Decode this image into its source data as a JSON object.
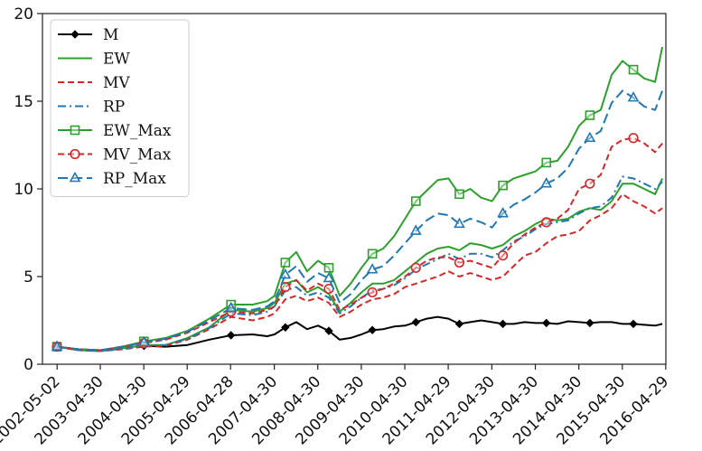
{
  "chart_data": {
    "type": "line",
    "title": "",
    "xlabel": "",
    "ylabel": "",
    "ylim": [
      0,
      20
    ],
    "yticks": [
      0,
      5,
      10,
      15,
      20
    ],
    "xticks": [
      "2002-05-02",
      "2003-04-30",
      "2004-04-30",
      "2005-04-29",
      "2006-04-28",
      "2007-04-30",
      "2008-04-30",
      "2009-04-30",
      "2010-04-30",
      "2011-04-29",
      "2012-04-30",
      "2013-04-30",
      "2014-04-30",
      "2015-04-30",
      "2016-04-29"
    ],
    "x": [
      "2002-05",
      "2002-11",
      "2003-05",
      "2003-11",
      "2004-05",
      "2004-11",
      "2005-05",
      "2005-11",
      "2006-05",
      "2006-11",
      "2007-03",
      "2007-05",
      "2007-08",
      "2007-11",
      "2008-02",
      "2008-05",
      "2008-08",
      "2008-11",
      "2009-02",
      "2009-05",
      "2009-08",
      "2009-11",
      "2010-02",
      "2010-05",
      "2010-08",
      "2010-11",
      "2011-02",
      "2011-05",
      "2011-08",
      "2011-11",
      "2012-02",
      "2012-05",
      "2012-08",
      "2012-11",
      "2013-02",
      "2013-05",
      "2013-08",
      "2013-11",
      "2014-02",
      "2014-05",
      "2014-08",
      "2014-11",
      "2015-02",
      "2015-05",
      "2015-08",
      "2015-11",
      "2016-02",
      "2016-04"
    ],
    "legend_position": "upper-left",
    "grid": false,
    "series": [
      {
        "name": "M",
        "color": "#000000",
        "dash": "solid",
        "marker": "diamond",
        "values": [
          1.0,
          0.85,
          0.8,
          0.95,
          1.05,
          1.0,
          1.1,
          1.4,
          1.65,
          1.7,
          1.6,
          1.7,
          2.1,
          2.4,
          2.0,
          2.2,
          1.9,
          1.4,
          1.5,
          1.7,
          1.95,
          2.0,
          2.15,
          2.2,
          2.4,
          2.6,
          2.7,
          2.6,
          2.3,
          2.4,
          2.5,
          2.4,
          2.3,
          2.3,
          2.4,
          2.35,
          2.35,
          2.3,
          2.45,
          2.4,
          2.35,
          2.4,
          2.4,
          2.3,
          2.3,
          2.25,
          2.2,
          2.3
        ]
      },
      {
        "name": "EW",
        "color": "#2ca02c",
        "dash": "solid",
        "marker": "none",
        "values": [
          1.0,
          0.8,
          0.75,
          0.9,
          1.1,
          1.1,
          1.5,
          2.1,
          3.1,
          3.0,
          3.2,
          3.5,
          4.6,
          4.8,
          4.1,
          4.4,
          4.0,
          3.0,
          3.5,
          4.1,
          4.6,
          4.6,
          4.8,
          5.3,
          5.8,
          6.3,
          6.6,
          6.7,
          6.5,
          6.9,
          6.8,
          6.6,
          6.8,
          7.3,
          7.6,
          8.0,
          8.3,
          8.2,
          8.3,
          8.7,
          8.9,
          8.8,
          9.3,
          10.3,
          10.3,
          10.0,
          9.7,
          10.6
        ]
      },
      {
        "name": "MV",
        "color": "#d62728",
        "dash": "dash",
        "marker": "none",
        "values": [
          1.0,
          0.8,
          0.75,
          0.85,
          1.0,
          1.05,
          1.4,
          2.0,
          2.7,
          2.5,
          2.7,
          2.9,
          3.7,
          3.9,
          3.6,
          3.8,
          3.5,
          2.7,
          3.0,
          3.4,
          3.7,
          3.8,
          4.0,
          4.4,
          4.6,
          4.8,
          5.0,
          5.3,
          5.0,
          5.2,
          5.0,
          4.8,
          5.0,
          5.6,
          6.2,
          6.4,
          6.9,
          7.3,
          7.4,
          7.6,
          8.2,
          8.5,
          8.9,
          9.7,
          9.3,
          9.0,
          8.6,
          8.9
        ]
      },
      {
        "name": "RP",
        "color": "#1f77b4",
        "dash": "dashdot",
        "marker": "none",
        "values": [
          1.0,
          0.8,
          0.75,
          0.88,
          1.05,
          1.1,
          1.45,
          2.05,
          2.9,
          2.8,
          3.0,
          3.3,
          4.2,
          4.4,
          3.9,
          4.1,
          3.8,
          2.9,
          3.3,
          3.8,
          4.2,
          4.3,
          4.5,
          4.9,
          5.4,
          5.7,
          6.0,
          6.3,
          6.0,
          6.3,
          6.3,
          6.1,
          6.5,
          7.0,
          7.3,
          7.7,
          8.0,
          8.1,
          8.2,
          8.6,
          8.9,
          9.0,
          9.5,
          10.7,
          10.6,
          10.3,
          10.0,
          10.4
        ]
      },
      {
        "name": "EW_Max",
        "color": "#2ca02c",
        "dash": "solid",
        "marker": "square",
        "values": [
          1.0,
          0.85,
          0.8,
          1.0,
          1.3,
          1.5,
          1.9,
          2.6,
          3.4,
          3.4,
          3.6,
          3.9,
          5.8,
          6.4,
          5.3,
          5.9,
          5.5,
          3.9,
          4.6,
          5.5,
          6.3,
          6.6,
          7.3,
          8.3,
          9.3,
          9.9,
          10.5,
          10.6,
          9.7,
          10.0,
          9.5,
          9.3,
          10.2,
          10.6,
          10.8,
          11.0,
          11.5,
          11.6,
          12.4,
          13.6,
          14.2,
          14.5,
          16.5,
          17.3,
          16.8,
          16.3,
          16.1,
          18.1
        ]
      },
      {
        "name": "MV_Max",
        "color": "#d62728",
        "dash": "dash",
        "marker": "circle",
        "values": [
          1.0,
          0.85,
          0.8,
          1.0,
          1.2,
          1.4,
          1.8,
          2.4,
          3.0,
          2.9,
          3.1,
          3.3,
          4.4,
          4.8,
          4.2,
          4.6,
          4.3,
          3.1,
          3.4,
          3.8,
          4.1,
          4.3,
          4.6,
          5.0,
          5.5,
          5.9,
          6.1,
          6.1,
          5.8,
          5.9,
          5.7,
          5.5,
          6.2,
          6.9,
          7.4,
          7.8,
          8.1,
          8.3,
          8.8,
          10.0,
          10.3,
          10.8,
          12.4,
          12.8,
          12.9,
          12.6,
          12.1,
          12.6
        ]
      },
      {
        "name": "RP_Max",
        "color": "#1f77b4",
        "dash": "longdash",
        "marker": "triangle",
        "values": [
          1.0,
          0.85,
          0.8,
          1.0,
          1.25,
          1.45,
          1.85,
          2.5,
          3.2,
          3.1,
          3.3,
          3.6,
          5.1,
          5.6,
          4.7,
          5.2,
          4.9,
          3.5,
          4.0,
          4.8,
          5.4,
          5.6,
          6.2,
          6.9,
          7.6,
          8.2,
          8.6,
          8.5,
          8.0,
          8.3,
          8.1,
          7.8,
          8.6,
          9.1,
          9.4,
          9.8,
          10.3,
          10.6,
          11.2,
          12.3,
          12.9,
          13.3,
          14.9,
          15.6,
          15.2,
          14.7,
          14.5,
          15.6
        ]
      }
    ]
  }
}
